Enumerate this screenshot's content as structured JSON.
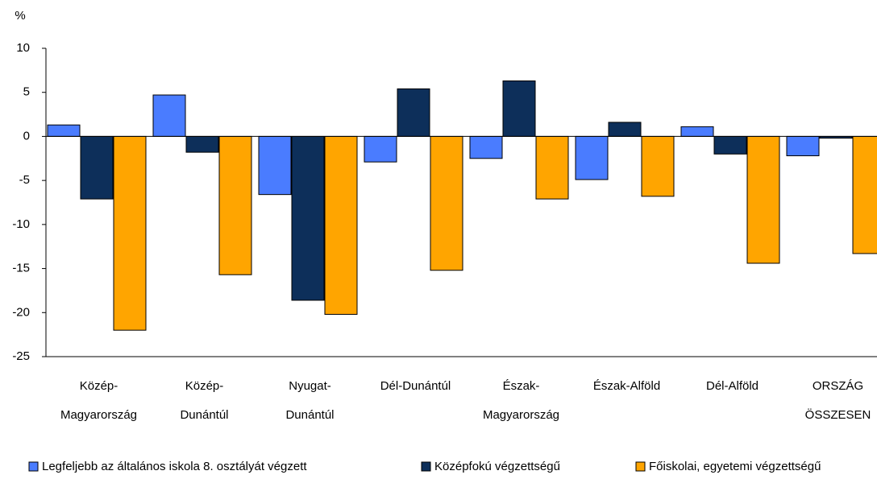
{
  "chart_data": {
    "type": "bar",
    "y_label": "%",
    "categories": [
      [
        "Közép-",
        "Magyarország"
      ],
      [
        "Közép-",
        "Dunántúl"
      ],
      [
        "Nyugat-",
        "Dunántúl"
      ],
      [
        "Dél-Dunántúl"
      ],
      [
        "Észak-",
        "Magyarország"
      ],
      [
        "Észak-Alföld"
      ],
      [
        "Dél-Alföld"
      ],
      [
        "ORSZÁG",
        "ÖSSZESEN"
      ]
    ],
    "series": [
      {
        "name": "Legfeljebb az általános iskola 8. osztályát végzett",
        "color": "#4a7cff",
        "values": [
          1.3,
          4.7,
          -6.6,
          -2.9,
          -2.5,
          -4.9,
          1.1,
          -2.2
        ]
      },
      {
        "name": "Középfokú végzettségű",
        "color": "#0d2f5a",
        "values": [
          -7.1,
          -1.8,
          -18.6,
          5.4,
          6.3,
          1.6,
          -2.0,
          -0.2
        ]
      },
      {
        "name": "Főiskolai, egyetemi végzettségű",
        "color": "#ffa500",
        "values": [
          -22.0,
          -15.7,
          -20.2,
          -15.2,
          -7.1,
          -6.8,
          -14.4,
          -13.3
        ]
      }
    ],
    "ylim": [
      -25,
      10
    ],
    "yticks": [
      -25,
      -20,
      -15,
      -10,
      -5,
      0,
      5,
      10
    ],
    "grid": false
  }
}
